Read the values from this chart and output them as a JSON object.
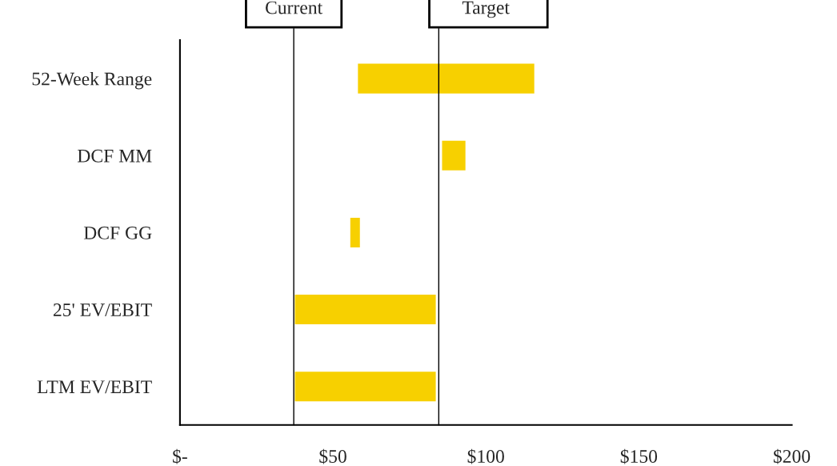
{
  "chart_data": {
    "type": "bar",
    "orientation": "horizontal",
    "categories": [
      "52-Week Range",
      "DCF MM",
      "DCF GG",
      "25' EV/EBIT",
      "LTM EV/EBIT"
    ],
    "base": [
      58,
      85.5,
      55.5,
      37.4,
      37.4
    ],
    "values": [
      58,
      8,
      3.5,
      46.4,
      46.4
    ],
    "color": "#f7d000",
    "xlim": [
      0,
      200
    ],
    "xticks": [
      {
        "value": 0,
        "label": "$-"
      },
      {
        "value": 50,
        "label": "$50"
      },
      {
        "value": 100,
        "label": "$100"
      },
      {
        "value": 150,
        "label": "$150"
      },
      {
        "value": 200,
        "label": "$200"
      }
    ],
    "ref_lines": [
      {
        "axis": "x",
        "value": 37.2,
        "label": "Current",
        "color": "#000000"
      },
      {
        "axis": "x",
        "value": 84.6,
        "label": "Target",
        "color": "#000000"
      }
    ],
    "grid": false
  }
}
